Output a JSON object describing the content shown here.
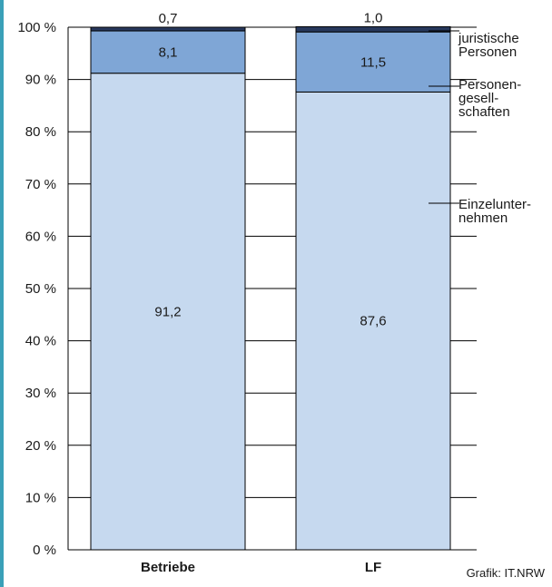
{
  "chart_data": {
    "type": "bar",
    "stacked": true,
    "categories": [
      "Betriebe",
      "LF"
    ],
    "series": [
      {
        "name": "Einzelunter-\nnehmen",
        "values": [
          91.2,
          87.6
        ],
        "labels": [
          "91,2",
          "87,6"
        ],
        "color": "#c6d9ef"
      },
      {
        "name": "Personen-\ngesell-\nschaften",
        "values": [
          8.1,
          11.5
        ],
        "labels": [
          "8,1",
          "11,5"
        ],
        "color": "#7fa6d6"
      },
      {
        "name": "juristische\nPersonen",
        "values": [
          0.7,
          1.0
        ],
        "labels": [
          "0,7",
          "1,0"
        ],
        "color": "#27385c"
      }
    ],
    "yticks": [
      "0 %",
      "10 %",
      "20 %",
      "30 %",
      "40 %",
      "50 %",
      "60 %",
      "70 %",
      "80 %",
      "90 %",
      "100 %"
    ],
    "ylim": [
      0,
      100
    ],
    "grid": true,
    "legend": "right",
    "source": "Grafik: IT.NRW"
  },
  "colors": {
    "border": "#3aa0b8",
    "axis": "#000000",
    "grid": "#000000"
  }
}
